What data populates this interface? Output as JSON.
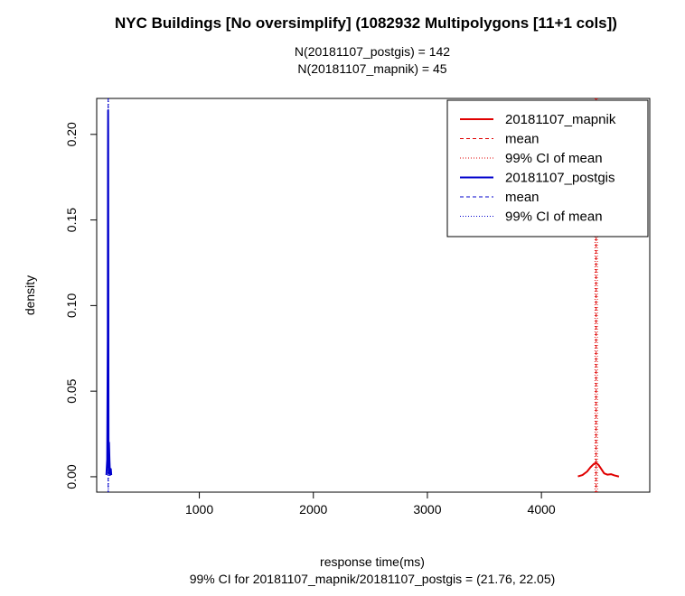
{
  "chart_data": {
    "type": "line",
    "title": "NYC Buildings [No oversimplify] (1082932 Multipolygons [11+1 cols])",
    "subtitle_lines": [
      "N(20181107_postgis) = 142",
      "N(20181107_mapnik) = 45"
    ],
    "xlabel": "response time(ms)",
    "xlabel_sub": "99% CI for 20181107_mapnik/20181107_postgis = (21.76, 22.05)",
    "ylabel": "density",
    "xlim": [
      100,
      4950
    ],
    "ylim": [
      -0.009,
      0.221
    ],
    "x_ticks": [
      1000,
      2000,
      3000,
      4000
    ],
    "y_ticks": [
      0.0,
      0.05,
      0.1,
      0.15,
      0.2
    ],
    "y_tick_labels": [
      "0.00",
      "0.05",
      "0.10",
      "0.15",
      "0.20"
    ],
    "grid": false,
    "legend_position": "top-right",
    "legend": [
      {
        "label": "20181107_mapnik",
        "color": "#e00000",
        "style": "solid"
      },
      {
        "label": "mean",
        "color": "#e00000",
        "style": "dashed"
      },
      {
        "label": "99% CI  of mean",
        "color": "#e00000",
        "style": "dotted"
      },
      {
        "label": "20181107_postgis",
        "color": "#0000cc",
        "style": "solid"
      },
      {
        "label": "mean",
        "color": "#0000cc",
        "style": "dashed"
      },
      {
        "label": "99% CI  of mean",
        "color": "#0000cc",
        "style": "dotted"
      }
    ],
    "series": [
      {
        "name": "20181107_mapnik",
        "color": "#e00000",
        "x": [
          4320,
          4360,
          4400,
          4430,
          4460,
          4480,
          4500,
          4520,
          4550,
          4580,
          4610,
          4640,
          4680
        ],
        "y": [
          0.0002,
          0.001,
          0.003,
          0.0055,
          0.0075,
          0.008,
          0.007,
          0.005,
          0.002,
          0.0012,
          0.0015,
          0.0008,
          0.0001
        ],
        "mean": 4480,
        "ci": [
          4470,
          4490
        ]
      },
      {
        "name": "20181107_postgis",
        "color": "#0000cc",
        "x": [
          185,
          192,
          197,
          199,
          200,
          201,
          202,
          203,
          204,
          205,
          206,
          208,
          212,
          217,
          224,
          228
        ],
        "y": [
          0.001,
          0.01,
          0.08,
          0.19,
          0.214,
          0.2,
          0.14,
          0.06,
          0.015,
          0.002,
          0.005,
          0.02,
          0.01,
          0.001,
          0.0045,
          0.001
        ],
        "mean": 201,
        "ci": [
          200,
          203
        ]
      }
    ]
  }
}
